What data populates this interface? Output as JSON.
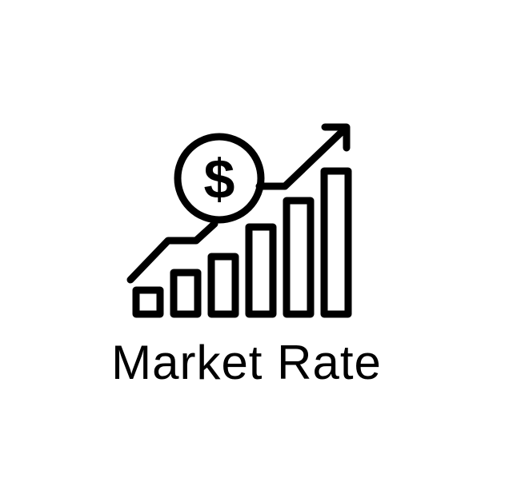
{
  "logo": {
    "icon": "market-rate-growth-icon",
    "color": "#000000",
    "background": "#ffffff",
    "currency_symbol": "$",
    "caption": "Market Rate"
  }
}
